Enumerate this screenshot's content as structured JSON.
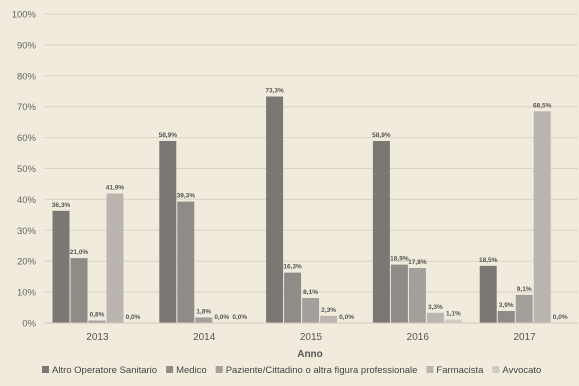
{
  "chart_data": {
    "type": "bar",
    "title": "",
    "xlabel": "Anno",
    "ylabel": "",
    "ylim": [
      0,
      100
    ],
    "yticks": [
      "0%",
      "10%",
      "20%",
      "30%",
      "40%",
      "50%",
      "60%",
      "70%",
      "80%",
      "90%",
      "100%"
    ],
    "categories": [
      "2013",
      "2014",
      "2015",
      "2016",
      "2017"
    ],
    "grid": true,
    "legend_position": "bottom",
    "series": [
      {
        "name": "Altro Operatore Sanitario",
        "color": "#7b7874",
        "values": [
          36.3,
          58.9,
          73.3,
          58.9,
          18.5
        ],
        "labels": [
          "36,3%",
          "58,9%",
          "73,3%",
          "58,9%",
          "18,5%"
        ]
      },
      {
        "name": "Medico",
        "color": "#8f8c88",
        "values": [
          21.0,
          39.3,
          16.3,
          18.9,
          3.9
        ],
        "labels": [
          "21,0%",
          "39,3%",
          "16,3%",
          "18,9%",
          "3,9%"
        ]
      },
      {
        "name": "Paziente/Cittadino o altra figura professionale",
        "color": "#a3a09b",
        "values": [
          0.8,
          1.8,
          8.1,
          17.8,
          9.1
        ],
        "labels": [
          "0,8%",
          "1,8%",
          "8,1%",
          "17,8%",
          "9,1%"
        ]
      },
      {
        "name": "Farmacista",
        "color": "#bab6af",
        "values": [
          41.9,
          0.0,
          2.3,
          3.3,
          68.5
        ],
        "labels": [
          "41,9%",
          "0,0%",
          "2,3%",
          "3,3%",
          "68,5%"
        ]
      },
      {
        "name": "Avvocato",
        "color": "#cfcac2",
        "values": [
          0.0,
          0.0,
          0.0,
          1.1,
          0.0
        ],
        "labels": [
          "0,0%",
          "0,0%",
          "0,0%",
          "1,1%",
          "0,0%"
        ]
      }
    ]
  }
}
